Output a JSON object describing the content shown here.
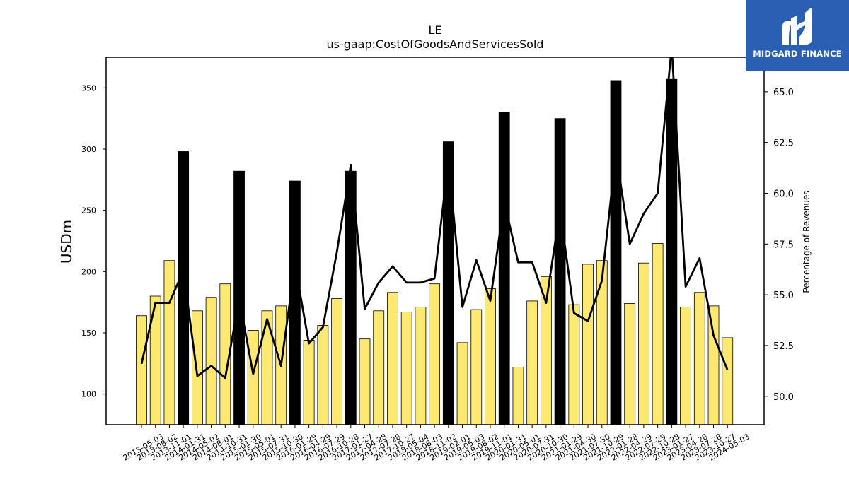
{
  "chart_data": {
    "type": "bar",
    "title": "LE",
    "subtitle": "us-gaap:CostOfGoodsAndServicesSold",
    "ylabel": "USDm",
    "y2label": "Percentage of Revenues",
    "ylim": [
      75,
      375
    ],
    "y2lim": [
      48.6,
      66.7
    ],
    "yticks": [
      100,
      150,
      200,
      250,
      300,
      350
    ],
    "y2ticks": [
      "50.0",
      "52.5",
      "55.0",
      "57.5",
      "60.0",
      "62.5",
      "65.0"
    ],
    "bar_color_regular": "#fde972",
    "bar_color_q4": "#000000",
    "line_color": "#000000",
    "categories": [
      "2013-05-03",
      "2013-08-02",
      "2013-11-01",
      "2014-01-31",
      "2014-05-02",
      "2014-08-01",
      "2014-10-31",
      "2015-01-30",
      "2015-05-01",
      "2015-07-31",
      "2015-10-30",
      "2016-01-29",
      "2016-04-29",
      "2016-07-29",
      "2016-10-28",
      "2017-01-27",
      "2017-04-28",
      "2017-07-28",
      "2017-10-27",
      "2018-05-04",
      "2018-08-03",
      "2018-11-02",
      "2019-02-01",
      "2019-05-03",
      "2019-08-02",
      "2019-11-01",
      "2020-01-31",
      "2020-05-01",
      "2020-07-31",
      "2020-10-30",
      "2021-01-29",
      "2021-04-30",
      "2021-07-30",
      "2021-10-29",
      "2022-01-28",
      "2022-04-29",
      "2022-07-29",
      "2022-10-28",
      "2023-01-27",
      "2023-04-28",
      "2023-07-28",
      "2023-10-27",
      "2024-05-03"
    ],
    "series": [
      {
        "name": "CostOfGoodsAndServicesSold",
        "values": [
          164,
          180,
          209,
          298,
          168,
          179,
          190,
          282,
          152,
          168,
          172,
          274,
          144,
          156,
          178,
          282,
          145,
          168,
          183,
          167,
          171,
          190,
          306,
          142,
          169,
          186,
          330,
          122,
          176,
          196,
          325,
          173,
          206,
          209,
          356,
          174,
          207,
          223,
          357,
          171,
          183,
          172,
          146
        ]
      },
      {
        "name": "Percentage of Revenues",
        "values": [
          51.6,
          54.6,
          54.6,
          56.2,
          51.0,
          51.5,
          50.9,
          54.8,
          51.1,
          53.8,
          51.5,
          56.5,
          52.6,
          53.4,
          57.1,
          61.4,
          54.3,
          55.6,
          56.4,
          55.6,
          55.6,
          55.8,
          61.6,
          54.4,
          56.7,
          54.7,
          59.6,
          56.6,
          56.6,
          54.6,
          59.2,
          54.1,
          53.7,
          55.7,
          62.0,
          57.5,
          59.0,
          60.0,
          67.2,
          55.4,
          56.8,
          53.0,
          51.3
        ]
      }
    ],
    "q4_flags": [
      0,
      0,
      0,
      1,
      0,
      0,
      0,
      1,
      0,
      0,
      0,
      1,
      0,
      0,
      0,
      1,
      0,
      0,
      0,
      0,
      0,
      0,
      1,
      0,
      0,
      0,
      1,
      0,
      0,
      0,
      1,
      0,
      0,
      0,
      1,
      0,
      0,
      0,
      1,
      0,
      0,
      0,
      0
    ]
  },
  "logo": {
    "text": "MIDGARD FINANCE"
  }
}
